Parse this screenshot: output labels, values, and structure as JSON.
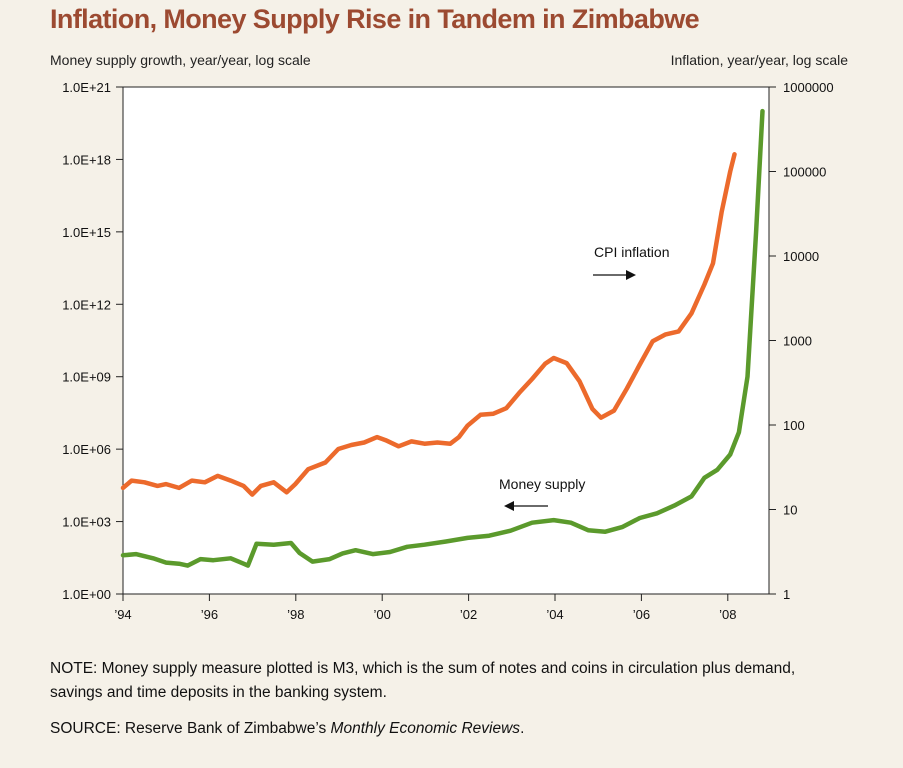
{
  "title": "Inflation, Money Supply Rise in Tandem in Zimbabwe",
  "note": "NOTE: Money supply measure plotted is M3, which is the sum of notes and coins in circulation plus demand, savings and time deposits in the banking system.",
  "source": {
    "prefix": "SOURCE: Reserve Bank of Zimbabwe’s ",
    "publication": "Monthly Economic Reviews",
    "suffix": "."
  },
  "colors": {
    "background": "#f5f1e8",
    "title": "#9c4a31",
    "cpi_inflation": "#ec6a2c",
    "money_supply": "#5b9a2c",
    "axis": "#222222"
  },
  "chart_data": {
    "type": "line",
    "title": "Inflation, Money Supply Rise in Tandem in Zimbabwe",
    "xlabel": "",
    "x_ticks": [
      "’94",
      "’96",
      "’98",
      "’00",
      "’02",
      "’04",
      "’06",
      "’08"
    ],
    "x_range": [
      1994,
      2009.0
    ],
    "y_left": {
      "label": "Money supply growth, year/year, log scale",
      "scale": "log",
      "ticks": [
        "1.0E+00",
        "1.0E+03",
        "1.0E+06",
        "1.0E+09",
        "1.0E+12",
        "1.0E+15",
        "1.0E+18",
        "1.0E+21"
      ],
      "range": [
        1,
        1e+21
      ]
    },
    "y_right": {
      "label": "Inflation, year/year, log scale",
      "scale": "log",
      "ticks": [
        "1",
        "10",
        "100",
        "1000",
        "10000",
        "100000",
        "1000000"
      ],
      "range": [
        1,
        1000000
      ]
    },
    "grid": false,
    "series": [
      {
        "name": "CPI inflation",
        "axis": "right",
        "points": [
          [
            1994.0,
            18
          ],
          [
            1994.2,
            22
          ],
          [
            1994.5,
            21
          ],
          [
            1994.8,
            19
          ],
          [
            1995.0,
            20
          ],
          [
            1995.3,
            18
          ],
          [
            1995.6,
            22
          ],
          [
            1995.9,
            21
          ],
          [
            1996.2,
            25
          ],
          [
            1996.5,
            22
          ],
          [
            1996.8,
            19
          ],
          [
            1997.0,
            15
          ],
          [
            1997.2,
            19
          ],
          [
            1997.5,
            21
          ],
          [
            1997.8,
            16
          ],
          [
            1998.0,
            20
          ],
          [
            1998.3,
            30
          ],
          [
            1998.7,
            36
          ],
          [
            1999.0,
            52
          ],
          [
            1999.3,
            58
          ],
          [
            1999.6,
            62
          ],
          [
            1999.9,
            72
          ],
          [
            2000.1,
            66
          ],
          [
            2000.4,
            56
          ],
          [
            2000.7,
            64
          ],
          [
            2001.0,
            60
          ],
          [
            2001.3,
            62
          ],
          [
            2001.6,
            60
          ],
          [
            2001.8,
            72
          ],
          [
            2002.0,
            98
          ],
          [
            2002.3,
            132
          ],
          [
            2002.6,
            136
          ],
          [
            2002.9,
            158
          ],
          [
            2003.2,
            240
          ],
          [
            2003.5,
            350
          ],
          [
            2003.8,
            530
          ],
          [
            2004.0,
            620
          ],
          [
            2004.3,
            540
          ],
          [
            2004.6,
            330
          ],
          [
            2004.9,
            155
          ],
          [
            2005.1,
            122
          ],
          [
            2005.4,
            148
          ],
          [
            2005.7,
            270
          ],
          [
            2006.0,
            520
          ],
          [
            2006.3,
            980
          ],
          [
            2006.6,
            1180
          ],
          [
            2006.9,
            1280
          ],
          [
            2007.2,
            2100
          ],
          [
            2007.5,
            4600
          ],
          [
            2007.7,
            8200
          ],
          [
            2007.9,
            33000
          ],
          [
            2008.1,
            100000
          ],
          [
            2008.2,
            160000
          ]
        ]
      },
      {
        "name": "Money supply",
        "axis": "left",
        "points": [
          [
            1994.0,
            40
          ],
          [
            1994.3,
            45
          ],
          [
            1994.7,
            30
          ],
          [
            1995.0,
            20
          ],
          [
            1995.3,
            18
          ],
          [
            1995.5,
            15
          ],
          [
            1995.8,
            28
          ],
          [
            1996.1,
            25
          ],
          [
            1996.5,
            30
          ],
          [
            1996.8,
            18
          ],
          [
            1996.9,
            15
          ],
          [
            1997.1,
            120
          ],
          [
            1997.5,
            110
          ],
          [
            1997.9,
            130
          ],
          [
            1998.1,
            50
          ],
          [
            1998.4,
            22
          ],
          [
            1998.8,
            28
          ],
          [
            1999.1,
            48
          ],
          [
            1999.4,
            65
          ],
          [
            1999.8,
            45
          ],
          [
            2000.2,
            55
          ],
          [
            2000.6,
            90
          ],
          [
            2001.0,
            110
          ],
          [
            2001.5,
            150
          ],
          [
            2002.0,
            210
          ],
          [
            2002.5,
            260
          ],
          [
            2003.0,
            420
          ],
          [
            2003.5,
            900
          ],
          [
            2004.0,
            1150
          ],
          [
            2004.4,
            900
          ],
          [
            2004.8,
            440
          ],
          [
            2005.2,
            380
          ],
          [
            2005.6,
            600
          ],
          [
            2006.0,
            1400
          ],
          [
            2006.4,
            2200
          ],
          [
            2006.8,
            4600
          ],
          [
            2007.2,
            11000
          ],
          [
            2007.5,
            65000
          ],
          [
            2007.8,
            140000
          ],
          [
            2008.1,
            600000
          ],
          [
            2008.3,
            5000000
          ],
          [
            2008.5,
            1000000000.0
          ],
          [
            2008.7,
            1000000000000000.0
          ],
          [
            2008.85,
            1e+20
          ]
        ]
      }
    ],
    "annotations": [
      {
        "text": "CPI inflation",
        "points_to": "right axis"
      },
      {
        "text": "Money supply",
        "points_to": "left axis"
      }
    ]
  }
}
